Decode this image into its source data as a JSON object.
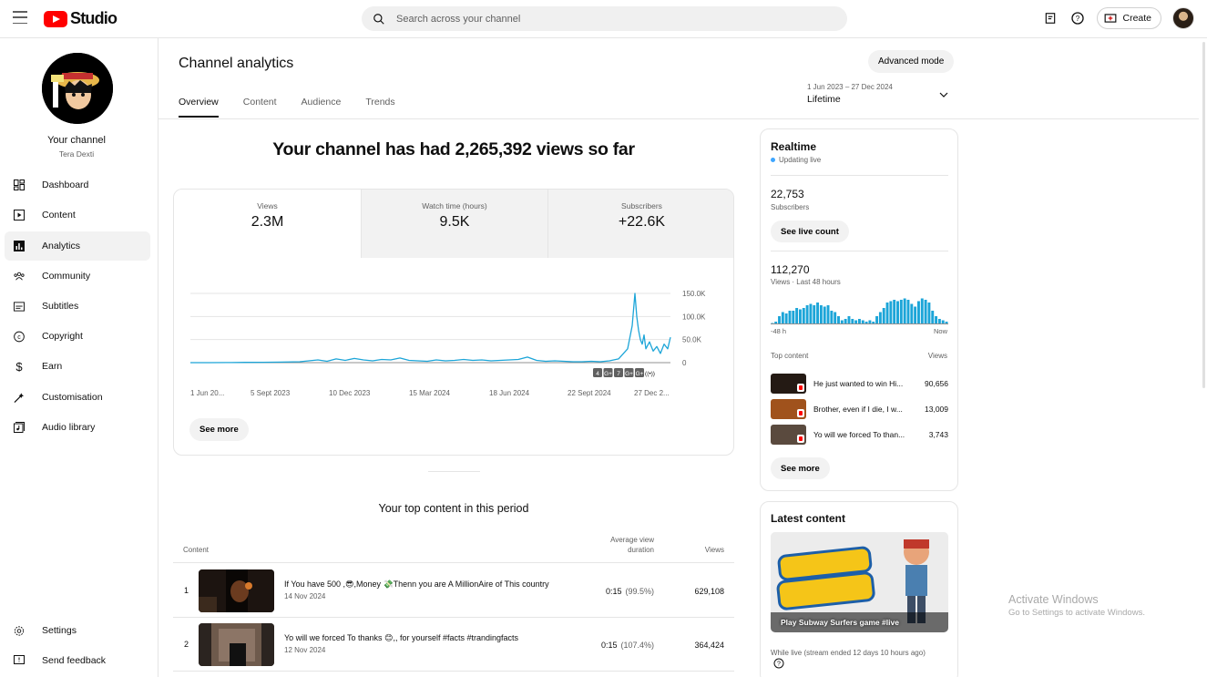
{
  "app": {
    "logo_text": "Studio",
    "search_placeholder": "Search across your channel",
    "create_label": "Create"
  },
  "sidebar": {
    "channel_title": "Your channel",
    "channel_name": "Tera Dexti",
    "items": [
      {
        "label": "Dashboard",
        "icon": "dashboard-icon"
      },
      {
        "label": "Content",
        "icon": "content-icon"
      },
      {
        "label": "Analytics",
        "icon": "analytics-icon",
        "active": true
      },
      {
        "label": "Community",
        "icon": "community-icon"
      },
      {
        "label": "Subtitles",
        "icon": "subtitles-icon"
      },
      {
        "label": "Copyright",
        "icon": "copyright-icon"
      },
      {
        "label": "Earn",
        "icon": "earn-icon"
      },
      {
        "label": "Customisation",
        "icon": "customisation-icon"
      },
      {
        "label": "Audio library",
        "icon": "audio-library-icon"
      }
    ],
    "settings_label": "Settings",
    "feedback_label": "Send feedback"
  },
  "header": {
    "title": "Channel analytics",
    "advanced_mode": "Advanced mode",
    "tabs": [
      "Overview",
      "Content",
      "Audience",
      "Trends"
    ],
    "active_tab": "Overview",
    "date_range": "1 Jun 2023 – 27 Dec 2024",
    "date_label": "Lifetime"
  },
  "overview": {
    "headline": "Your channel has had 2,265,392 views so far",
    "metrics": [
      {
        "label": "Views",
        "value": "2.3M"
      },
      {
        "label": "Watch time (hours)",
        "value": "9.5K"
      },
      {
        "label": "Subscribers",
        "value": "+22.6K"
      }
    ],
    "see_more": "See more",
    "content_badges": [
      "4",
      "G+",
      "7",
      "G+",
      "G+",
      "((•))"
    ]
  },
  "chart_data": {
    "type": "line",
    "title": "",
    "xlabel": "",
    "ylabel": "",
    "x_tick_labels": [
      "1 Jun 20...",
      "5 Sept 2023",
      "10 Dec 2023",
      "15 Mar 2024",
      "18 Jun 2024",
      "22 Sept 2024",
      "27 Dec 2..."
    ],
    "y_tick_labels": [
      "150.0K",
      "100.0K",
      "50.0K",
      "0"
    ],
    "ylim": [
      0,
      150000
    ],
    "grid": true,
    "series": [
      {
        "color": "#1ca5d8",
        "x_index": [
          0,
          20,
          40,
          60,
          80,
          100,
          120,
          130,
          140,
          150,
          160,
          170,
          180,
          190,
          200,
          210,
          220,
          230,
          240,
          250,
          260,
          270,
          280,
          290,
          300,
          310,
          320,
          330,
          340,
          350,
          360,
          370,
          380,
          390,
          400,
          410,
          420,
          430,
          440,
          450,
          460,
          470,
          480,
          485,
          488,
          490,
          492,
          494,
          496,
          498,
          500,
          504,
          508,
          512,
          516,
          520,
          524,
          527
        ],
        "values": [
          0,
          0,
          200,
          500,
          800,
          1200,
          2000,
          4000,
          6000,
          3000,
          8000,
          5000,
          9000,
          6000,
          4000,
          7000,
          6000,
          10000,
          5000,
          4000,
          3000,
          6000,
          4000,
          5000,
          7000,
          5000,
          6000,
          4000,
          5000,
          6000,
          7000,
          12000,
          5000,
          3000,
          4000,
          3000,
          2000,
          2000,
          3000,
          2000,
          4000,
          8000,
          30000,
          80000,
          150000,
          100000,
          70000,
          50000,
          40000,
          60000,
          30000,
          45000,
          25000,
          35000,
          20000,
          40000,
          30000,
          55000
        ]
      }
    ]
  },
  "top_content": {
    "title": "Your top content in this period",
    "columns": {
      "content": "Content",
      "avg_view_duration": "Average view duration",
      "views": "Views"
    },
    "rows": [
      {
        "rank": "1",
        "title": "If You have 500 ,😎,Money 💸Thenn you are A MillionAire of This country",
        "date": "14 Nov 2024",
        "duration": "0:15",
        "pct": "(99.5%)",
        "views": "629,108"
      },
      {
        "rank": "2",
        "title": "Yo will we forced To thanks 😊,, for yourself #facts #trandingfacts",
        "date": "12 Nov 2024",
        "duration": "0:15",
        "pct": "(107.4%)",
        "views": "364,424"
      }
    ]
  },
  "realtime": {
    "title": "Realtime",
    "live": "Updating live",
    "subs_value": "22,753",
    "subs_label": "Subscribers",
    "see_live": "See live count",
    "views_value": "112,270",
    "views_label": "Views · Last 48 hours",
    "axis_left": "-48 h",
    "axis_right": "Now",
    "top_content_label": "Top content",
    "views_col": "Views",
    "bars": [
      0.05,
      0.1,
      0.3,
      0.45,
      0.4,
      0.5,
      0.5,
      0.6,
      0.55,
      0.6,
      0.7,
      0.75,
      0.7,
      0.8,
      0.7,
      0.65,
      0.7,
      0.5,
      0.45,
      0.3,
      0.15,
      0.2,
      0.3,
      0.2,
      0.15,
      0.2,
      0.15,
      0.1,
      0.15,
      0.1,
      0.3,
      0.45,
      0.6,
      0.8,
      0.85,
      0.9,
      0.85,
      0.9,
      0.95,
      0.9,
      0.75,
      0.65,
      0.85,
      0.95,
      0.9,
      0.8,
      0.5,
      0.3,
      0.2,
      0.15,
      0.1
    ],
    "items": [
      {
        "title": "He just wanted to win Hi...",
        "views": "90,656"
      },
      {
        "title": "Brother, even if I die, I w...",
        "views": "13,009"
      },
      {
        "title": "Yo will we forced To than...",
        "views": "3,743"
      }
    ],
    "see_more": "See more"
  },
  "latest": {
    "title": "Latest content",
    "thumb_caption": "Play Subway Surfers game #live",
    "subtitle": "While live (stream ended 12 days 10 hours ago)"
  },
  "watermark": {
    "line1": "Activate Windows",
    "line2": "Go to Settings to activate Windows."
  }
}
